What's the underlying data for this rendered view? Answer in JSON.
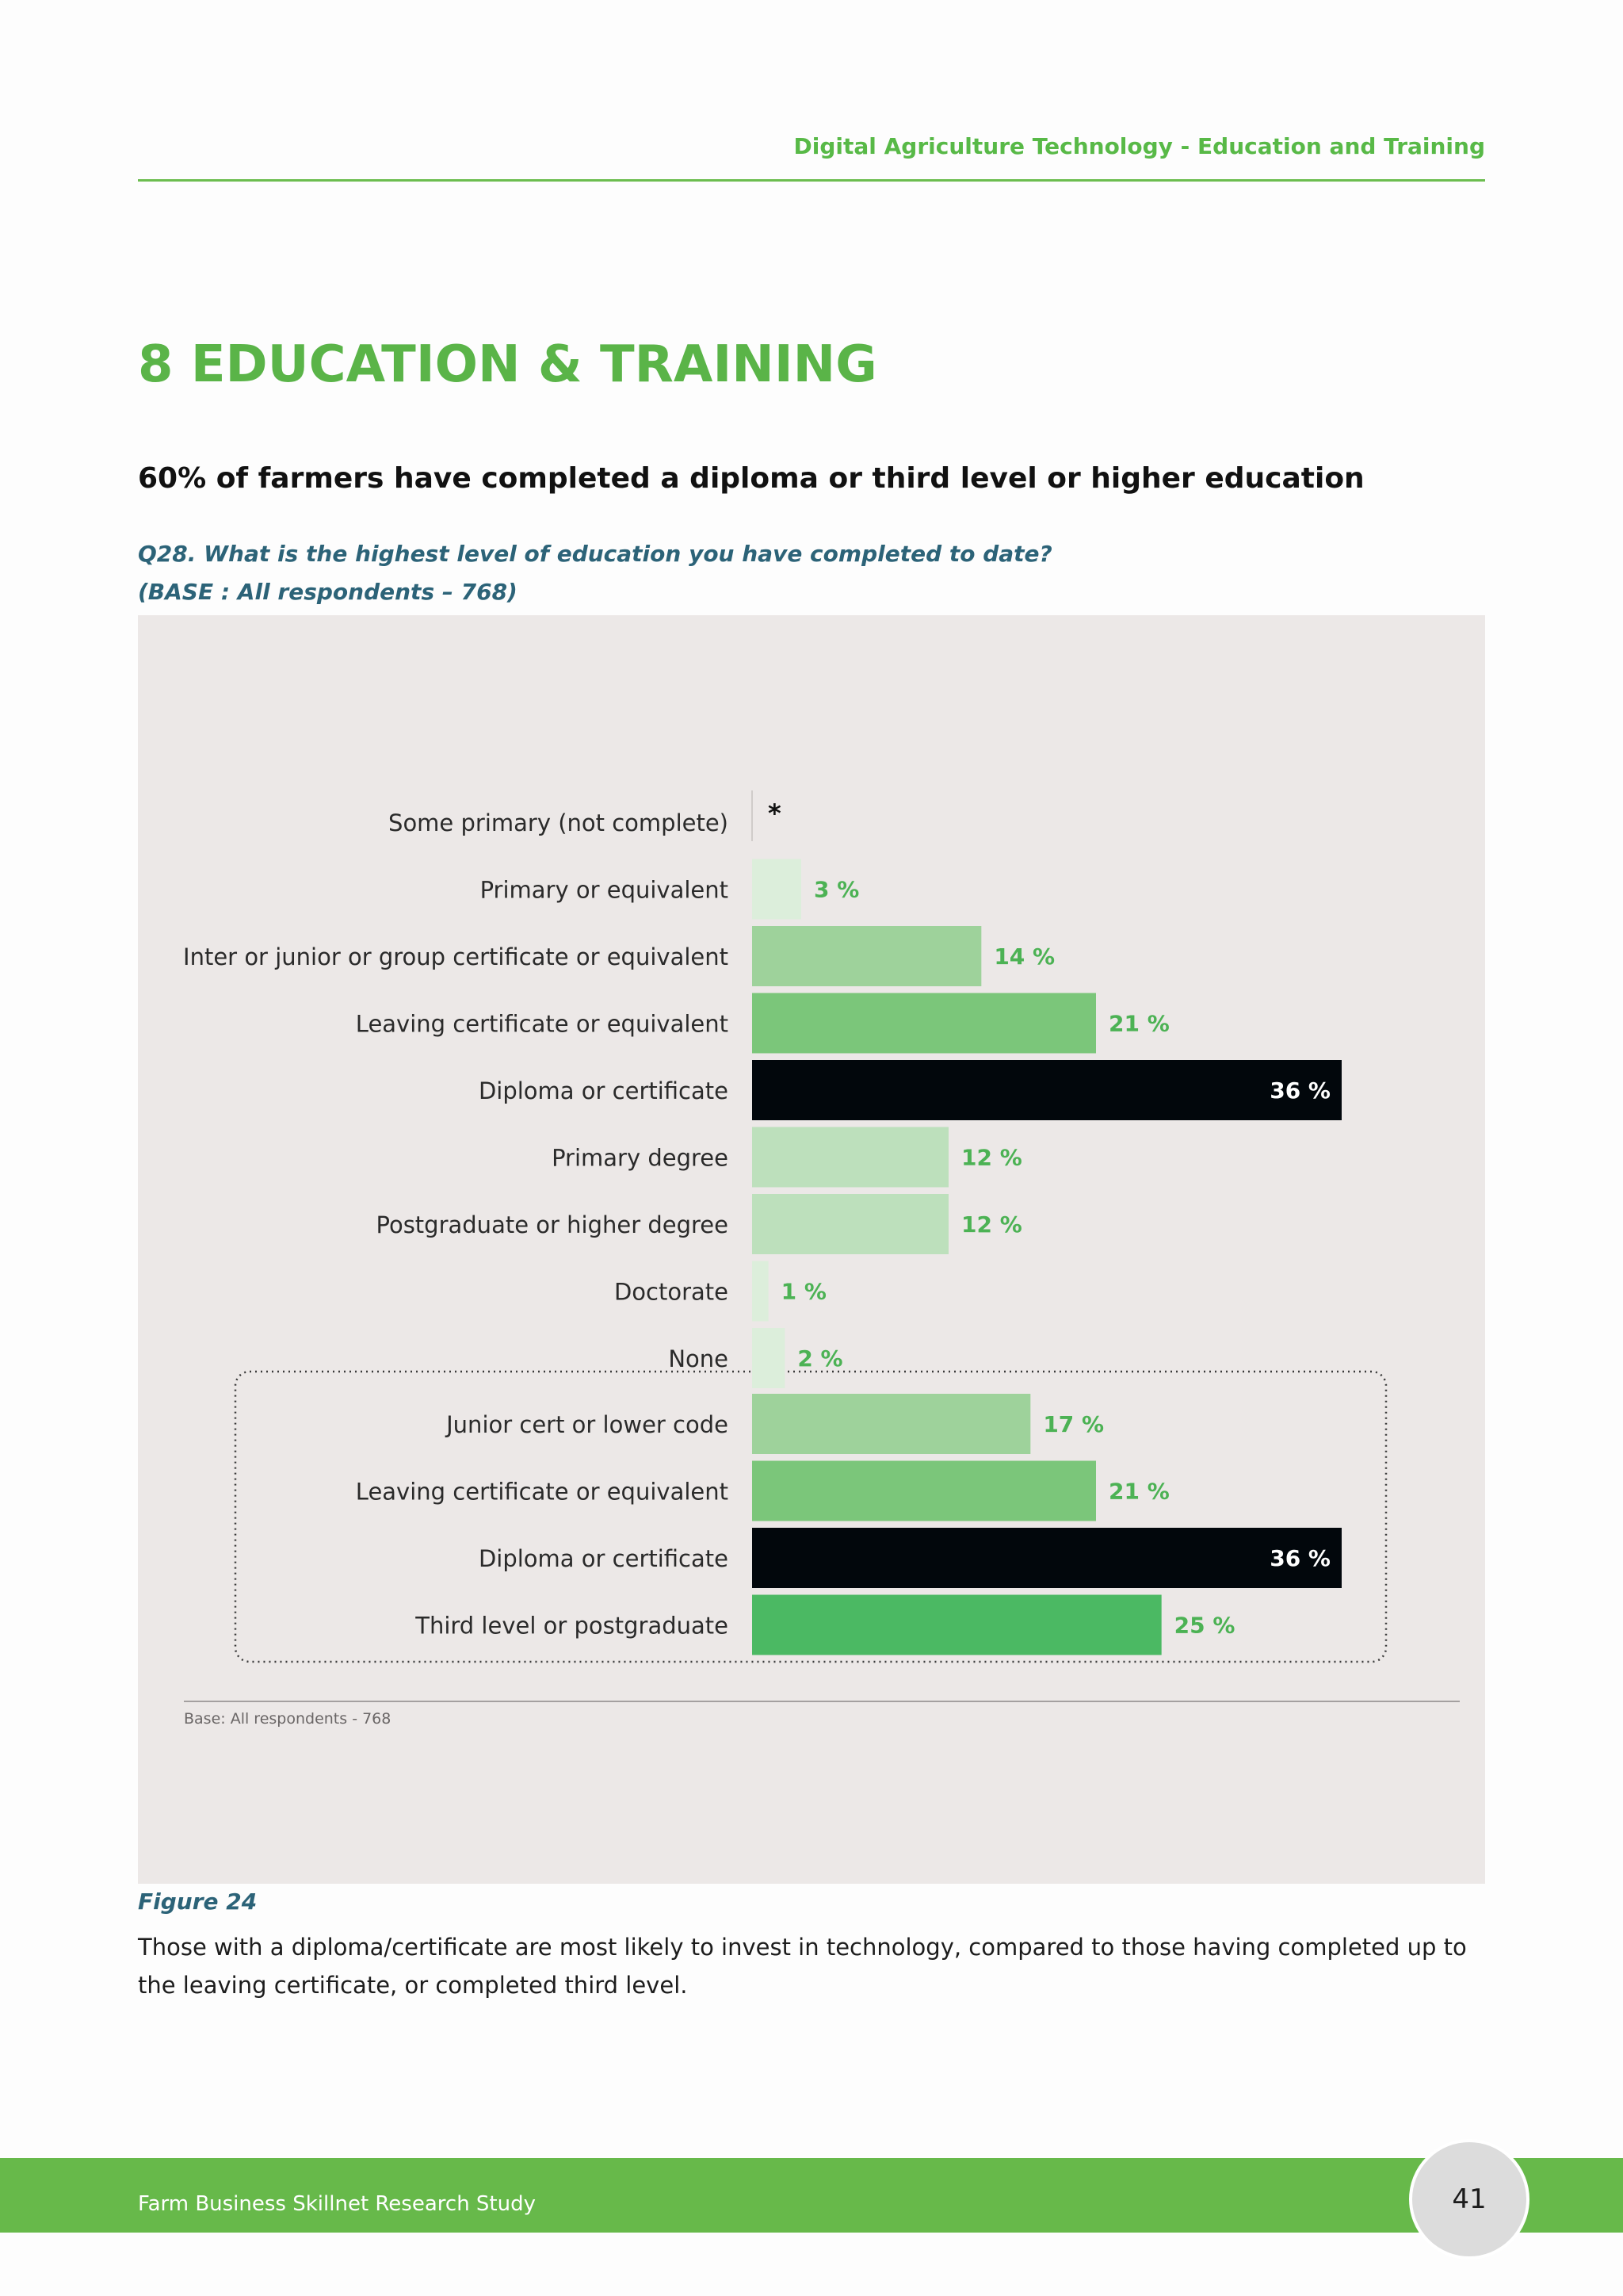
{
  "header": {
    "running_title": "Digital Agriculture Technology - Education and Training"
  },
  "section_title": "8 EDUCATION & TRAINING",
  "headline": "60% of farmers have completed a diploma or third level or higher education",
  "question": {
    "line1": "Q28. What is the highest level of education you have completed to date?",
    "line2": "(BASE : All respondents – 768)"
  },
  "colors": {
    "panel_background": "#ece8e7",
    "very_light_green": "#dceedb",
    "light_green": "#bde0bc",
    "mid_light_green": "#9ed29b",
    "medium_green": "#7bc67a",
    "bright_green": "#4bb963",
    "highlight_black": "#02070c",
    "value_label_green": "#4cb254",
    "heading_green": "#5ab448",
    "question_teal": "#2c6378",
    "footer_green": "#67b94a"
  },
  "chart_data": {
    "type": "bar",
    "orientation": "horizontal",
    "value_unit": "%",
    "groups": [
      {
        "categories": [
          "Some primary (not complete)",
          "Primary or equivalent",
          "Inter or junior or group certificate or equivalent",
          "Leaving certificate or equivalent",
          "Diploma or certificate",
          "Primary degree",
          "Postgraduate or higher degree",
          "Doctorate",
          "None"
        ],
        "values": [
          0,
          3,
          14,
          21,
          36,
          12,
          12,
          1,
          2
        ],
        "value_labels": [
          "*",
          "3 %",
          "14 %",
          "21 %",
          "36 %",
          "12 %",
          "12 %",
          "1 %",
          "2 %"
        ],
        "bar_colors": [
          "#dceedb",
          "#dceedb",
          "#9ed29b",
          "#7bc67a",
          "#02070c",
          "#bde0bc",
          "#bde0bc",
          "#dceedb",
          "#dceedb"
        ]
      },
      {
        "boxed": true,
        "categories": [
          "Junior cert or lower code",
          "Leaving certificate or equivalent",
          "Diploma or certificate",
          "Third level or postgraduate"
        ],
        "values": [
          17,
          21,
          36,
          25
        ],
        "value_labels": [
          "17 %",
          "21 %",
          "36 %",
          "25 %"
        ],
        "bar_colors": [
          "#9ed29b",
          "#7bc67a",
          "#02070c",
          "#4bb963"
        ]
      }
    ],
    "highlight_category": "Diploma or certificate",
    "xlim": [
      0,
      36
    ],
    "note": "Base: All respondents - 768"
  },
  "figure": {
    "label": "Figure 24",
    "caption": "Those with a diploma/certificate are most likely to invest in technology, compared to those having completed up to the leaving certificate, or completed third level."
  },
  "footer": {
    "study_name": "Farm Business Skillnet Research Study",
    "page_number": "41"
  }
}
